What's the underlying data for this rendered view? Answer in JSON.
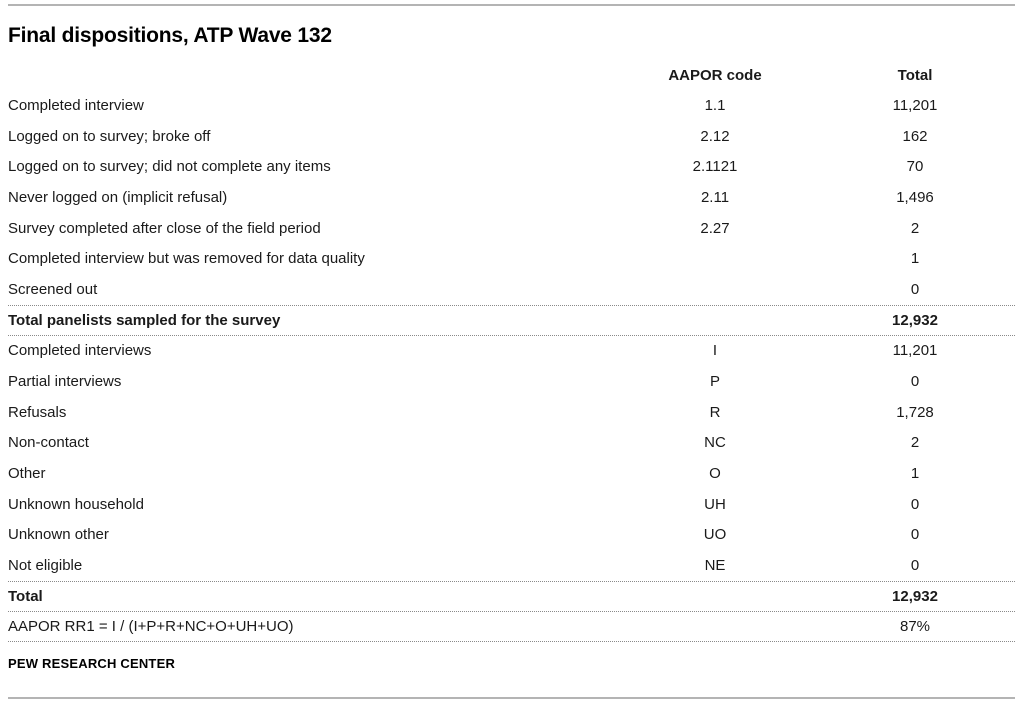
{
  "chart_data": {
    "type": "table",
    "title": "Final dispositions, ATP Wave 132",
    "columns": [
      "",
      "AAPOR code",
      "Total"
    ],
    "rows": [
      {
        "label": "Completed interview",
        "aapor_code": "1.1",
        "total": "11,201"
      },
      {
        "label": "Logged on to survey; broke off",
        "aapor_code": "2.12",
        "total": "162"
      },
      {
        "label": "Logged on to survey; did not complete any items",
        "aapor_code": "2.1121",
        "total": "70"
      },
      {
        "label": "Never logged on (implicit refusal)",
        "aapor_code": "2.11",
        "total": "1,496"
      },
      {
        "label": "Survey completed after close of the field period",
        "aapor_code": "2.27",
        "total": "2"
      },
      {
        "label": "Completed interview but was removed for data quality",
        "aapor_code": "",
        "total": "1"
      },
      {
        "label": "Screened out",
        "aapor_code": "",
        "total": "0"
      },
      {
        "label": "Total panelists sampled for the survey",
        "aapor_code": "",
        "total": "12,932",
        "bold": true,
        "separators": [
          "top",
          "bottom"
        ]
      },
      {
        "label": "Completed interviews",
        "aapor_code": "I",
        "total": "11,201"
      },
      {
        "label": "Partial interviews",
        "aapor_code": "P",
        "total": "0"
      },
      {
        "label": "Refusals",
        "aapor_code": "R",
        "total": "1,728"
      },
      {
        "label": "Non-contact",
        "aapor_code": "NC",
        "total": "2"
      },
      {
        "label": "Other",
        "aapor_code": "O",
        "total": "1"
      },
      {
        "label": "Unknown household",
        "aapor_code": "UH",
        "total": "0"
      },
      {
        "label": "Unknown other",
        "aapor_code": "UO",
        "total": "0"
      },
      {
        "label": "Not eligible",
        "aapor_code": "NE",
        "total": "0"
      },
      {
        "label": "Total",
        "aapor_code": "",
        "total": "12,932",
        "bold": true,
        "separators": [
          "top",
          "bottom"
        ]
      },
      {
        "label": "AAPOR RR1 = I / (I+P+R+NC+O+UH+UO)",
        "aapor_code": "",
        "total": "87%",
        "separators": [
          "bottom"
        ]
      }
    ],
    "source_label": "PEW RESEARCH CENTER"
  },
  "colors": {
    "text": "#1a1a1a",
    "rule_solid": "#b4b4b4",
    "rule_dotted": "#8a8a8a"
  }
}
